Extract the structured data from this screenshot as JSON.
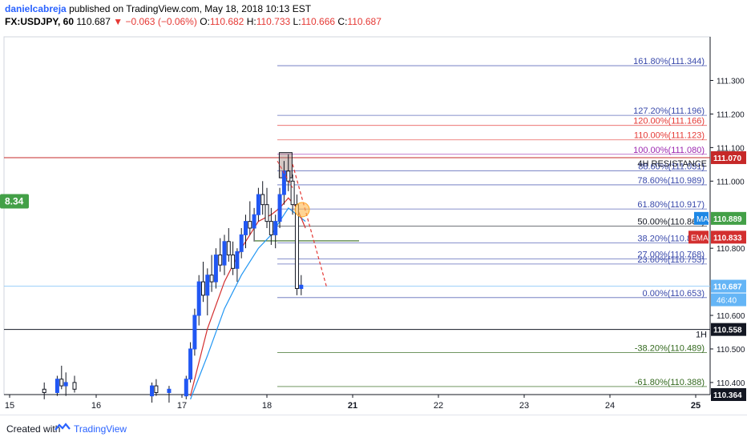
{
  "header": {
    "author": "danielcabreja",
    "published": "published on TradingView.com, May 18, 2018 10:13 EST",
    "symbol": "FX:USDJPY, 60",
    "last": "110.687",
    "change": "▼ −0.063 (−0.06%)",
    "open_label": "O:",
    "open": "110.682",
    "high_label": "H:",
    "high": "110.733",
    "low_label": "L:",
    "low": "110.666",
    "close_label": "C:",
    "close": "110.687"
  },
  "footer": {
    "created": "Created with",
    "brand": "TradingView"
  },
  "colors": {
    "up": "#2157f3",
    "down": "#131722",
    "ma": "#2196f3",
    "ema": "#d32f2f",
    "resistance": "#c62828",
    "fib_blue": "#3949ab",
    "fib_red": "#e53935",
    "fib_magenta": "#9c27b0",
    "fib_green": "#33691e",
    "last_price": "#64b5f6"
  },
  "chart_data": {
    "type": "candlestick",
    "symbol": "FX:USDJPY",
    "interval": "60",
    "x_ticks": [
      "15",
      "16",
      "17",
      "18",
      "21",
      "22",
      "23",
      "24",
      "25"
    ],
    "y_ticks": [
      "111.300",
      "111.200",
      "111.100",
      "111.000",
      "110.800",
      "110.600",
      "110.500",
      "110.400"
    ],
    "ylim": [
      110.364,
      111.43
    ],
    "left_badge": "8.34",
    "fib_levels": [
      {
        "label": "161.80%(111.344)",
        "price": 111.344,
        "color": "#3949ab"
      },
      {
        "label": "127.20%(111.196)",
        "price": 111.196,
        "color": "#3949ab"
      },
      {
        "label": "120.00%(111.166)",
        "price": 111.166,
        "color": "#e53935"
      },
      {
        "label": "110.00%(111.123)",
        "price": 111.123,
        "color": "#e53935"
      },
      {
        "label": "100.00%(111.080)",
        "price": 111.08,
        "color": "#9c27b0"
      },
      {
        "label": "88.60%(111.031)",
        "price": 111.031,
        "color": "#3949ab"
      },
      {
        "label": "78.60%(110.989)",
        "price": 110.989,
        "color": "#3949ab"
      },
      {
        "label": "61.80%(110.917)",
        "price": 110.917,
        "color": "#3949ab"
      },
      {
        "label": "50.00%(110.866)",
        "price": 110.866,
        "color": "#131722"
      },
      {
        "label": "38.20%(110.816)",
        "price": 110.816,
        "color": "#3949ab"
      },
      {
        "label": "27.00%(110.768)",
        "price": 110.768,
        "color": "#3949ab"
      },
      {
        "label": "23.60%(110.753)",
        "price": 110.753,
        "color": "#3949ab"
      },
      {
        "label": "0.00%(110.653)",
        "price": 110.653,
        "color": "#3949ab"
      },
      {
        "label": "-38.20%(110.489)",
        "price": 110.489,
        "color": "#33691e"
      },
      {
        "label": "-61.80%(110.388)",
        "price": 110.388,
        "color": "#33691e"
      }
    ],
    "horizontal_lines": [
      {
        "label": "4H RESISTANCE",
        "price": 111.07,
        "color": "#c62828"
      },
      {
        "label": "1H",
        "price": 110.558,
        "color": "#131722"
      },
      {
        "label": "",
        "price": 110.364,
        "color": "#131722"
      }
    ],
    "price_labels": [
      {
        "text": "111.070",
        "price": 111.07,
        "bg": "#c62828"
      },
      {
        "text": "110.889",
        "price": 110.889,
        "bg": "#43a047",
        "tag": "MA",
        "tag_bg": "#1e88e5"
      },
      {
        "text": "110.833",
        "price": 110.833,
        "bg": "#d32f2f",
        "tag": "EMA",
        "tag_bg": "#d32f2f"
      },
      {
        "text": "110.687",
        "price": 110.687,
        "bg": "#64b5f6",
        "sub": "46:40"
      },
      {
        "text": "110.558",
        "price": 110.558,
        "bg": "#131722"
      },
      {
        "text": "110.364",
        "price": 110.364,
        "bg": "#131722"
      }
    ],
    "candles": [
      [
        15.4,
        110.38,
        110.4,
        110.35,
        110.37
      ],
      [
        15.55,
        110.37,
        110.42,
        110.36,
        110.41
      ],
      [
        15.6,
        110.41,
        110.45,
        110.38,
        110.39
      ],
      [
        15.65,
        110.39,
        110.43,
        110.36,
        110.4
      ],
      [
        15.75,
        110.4,
        110.42,
        110.37,
        110.38
      ],
      [
        16.65,
        110.36,
        110.4,
        110.34,
        110.39
      ],
      [
        16.7,
        110.39,
        110.41,
        110.36,
        110.37
      ],
      [
        16.85,
        110.37,
        110.39,
        110.34,
        110.38
      ],
      [
        17.05,
        110.36,
        110.42,
        110.35,
        110.41
      ],
      [
        17.1,
        110.41,
        110.52,
        110.4,
        110.5
      ],
      [
        17.15,
        110.5,
        110.62,
        110.48,
        110.6
      ],
      [
        17.2,
        110.6,
        110.72,
        110.57,
        110.7
      ],
      [
        17.25,
        110.7,
        110.76,
        110.64,
        110.66
      ],
      [
        17.3,
        110.66,
        110.74,
        110.6,
        110.72
      ],
      [
        17.35,
        110.72,
        110.78,
        110.67,
        110.7
      ],
      [
        17.4,
        110.7,
        110.8,
        110.68,
        110.78
      ],
      [
        17.45,
        110.78,
        110.83,
        110.73,
        110.75
      ],
      [
        17.5,
        110.75,
        110.84,
        110.72,
        110.82
      ],
      [
        17.55,
        110.82,
        110.86,
        110.76,
        110.78
      ],
      [
        17.6,
        110.78,
        110.82,
        110.72,
        110.74
      ],
      [
        17.65,
        110.74,
        110.8,
        110.7,
        110.79
      ],
      [
        17.7,
        110.79,
        110.86,
        110.77,
        110.84
      ],
      [
        17.75,
        110.84,
        110.9,
        110.8,
        110.88
      ],
      [
        17.8,
        110.88,
        110.94,
        110.84,
        110.86
      ],
      [
        17.85,
        110.86,
        110.92,
        110.82,
        110.9
      ],
      [
        17.9,
        110.9,
        110.98,
        110.88,
        110.96
      ],
      [
        17.95,
        110.96,
        111.0,
        110.9,
        110.93
      ],
      [
        18.0,
        110.93,
        110.98,
        110.86,
        110.88
      ],
      [
        18.05,
        110.88,
        110.92,
        110.81,
        110.84
      ],
      [
        18.1,
        110.84,
        110.9,
        110.8,
        110.88
      ],
      [
        18.15,
        110.88,
        110.98,
        110.86,
        110.96
      ],
      [
        18.2,
        110.96,
        111.06,
        110.93,
        111.03
      ],
      [
        18.25,
        111.03,
        111.08,
        110.97,
        111.0
      ],
      [
        18.3,
        111.0,
        111.02,
        110.9,
        110.93
      ],
      [
        18.35,
        110.93,
        110.96,
        110.66,
        110.68
      ],
      [
        18.4,
        110.68,
        110.72,
        110.66,
        110.69
      ]
    ],
    "ma": [
      [
        17.1,
        110.35
      ],
      [
        17.3,
        110.48
      ],
      [
        17.5,
        110.62
      ],
      [
        17.7,
        110.72
      ],
      [
        17.9,
        110.8
      ],
      [
        18.05,
        110.84
      ],
      [
        18.15,
        110.88
      ],
      [
        18.25,
        110.92
      ],
      [
        18.35,
        110.9
      ],
      [
        18.45,
        110.88
      ]
    ],
    "ema": [
      [
        17.1,
        110.36
      ],
      [
        17.3,
        110.56
      ],
      [
        17.5,
        110.7
      ],
      [
        17.7,
        110.8
      ],
      [
        17.9,
        110.88
      ],
      [
        18.05,
        110.9
      ],
      [
        18.15,
        110.92
      ],
      [
        18.25,
        110.95
      ],
      [
        18.35,
        110.92
      ],
      [
        18.45,
        110.86
      ]
    ]
  }
}
